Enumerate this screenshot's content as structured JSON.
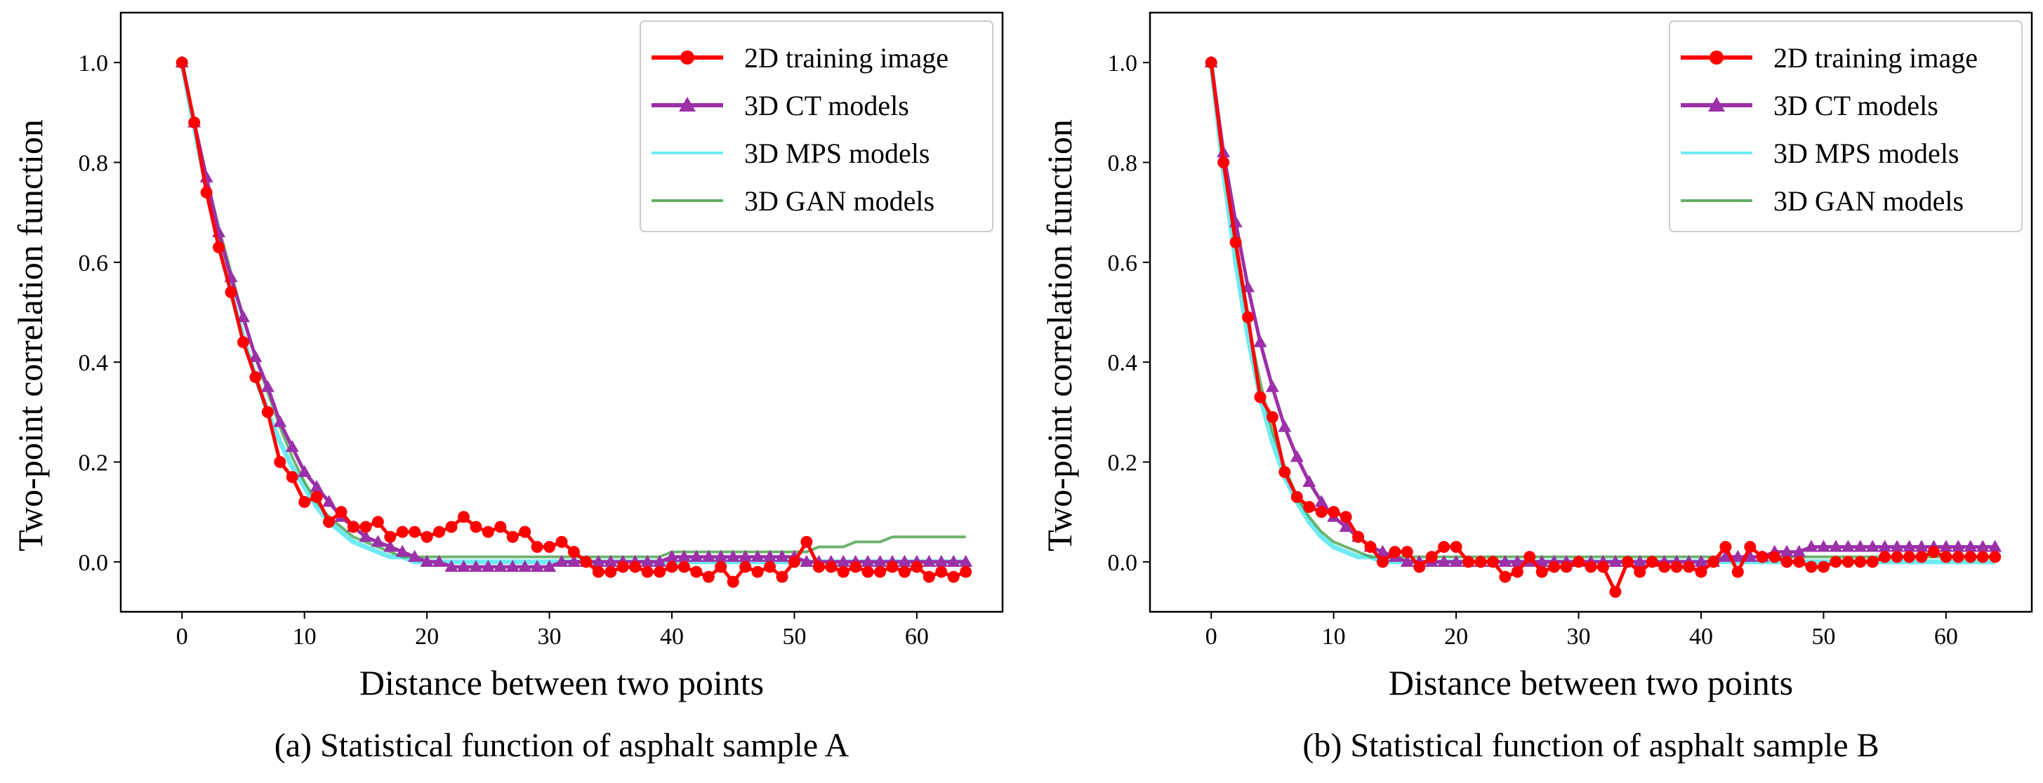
{
  "chart_data": [
    {
      "type": "line",
      "caption": "(a) Statistical function of asphalt sample A",
      "xlabel": "Distance between two points",
      "ylabel": "Two-point correlation function",
      "xlim": [
        -5,
        67
      ],
      "ylim": [
        -0.1,
        1.1
      ],
      "xticks": [
        "0",
        "10",
        "20",
        "30",
        "40",
        "50",
        "60"
      ],
      "yticks": [
        "0.0",
        "0.2",
        "0.4",
        "0.6",
        "0.8",
        "1.0"
      ],
      "legend_position": "top-right",
      "series": [
        {
          "name": "2D training image",
          "color": "#ff0000",
          "marker": "circle",
          "values": [
            1.0,
            0.88,
            0.74,
            0.63,
            0.54,
            0.44,
            0.37,
            0.3,
            0.2,
            0.17,
            0.12,
            0.13,
            0.08,
            0.1,
            0.07,
            0.07,
            0.08,
            0.05,
            0.06,
            0.06,
            0.05,
            0.06,
            0.07,
            0.09,
            0.07,
            0.06,
            0.07,
            0.05,
            0.06,
            0.03,
            0.03,
            0.04,
            0.02,
            0.0,
            -0.02,
            -0.02,
            -0.01,
            -0.01,
            -0.02,
            -0.02,
            -0.01,
            -0.01,
            -0.02,
            -0.03,
            -0.01,
            -0.04,
            -0.01,
            -0.02,
            -0.01,
            -0.03,
            0.0,
            0.04,
            -0.01,
            -0.01,
            -0.02,
            -0.01,
            -0.02,
            -0.02,
            -0.01,
            -0.02,
            -0.01,
            -0.03,
            -0.02,
            -0.03,
            -0.02
          ]
        },
        {
          "name": "3D CT models",
          "color": "#9b30a8",
          "marker": "triangle",
          "values": [
            1.0,
            0.88,
            0.77,
            0.66,
            0.57,
            0.49,
            0.41,
            0.35,
            0.28,
            0.23,
            0.18,
            0.15,
            0.12,
            0.09,
            0.07,
            0.05,
            0.04,
            0.03,
            0.02,
            0.01,
            0.0,
            0.0,
            -0.01,
            -0.01,
            -0.01,
            -0.01,
            -0.01,
            -0.01,
            -0.01,
            -0.01,
            -0.01,
            0.0,
            0.0,
            0.0,
            0.0,
            0.0,
            0.0,
            0.0,
            0.0,
            0.0,
            0.01,
            0.01,
            0.01,
            0.01,
            0.01,
            0.01,
            0.01,
            0.01,
            0.01,
            0.01,
            0.01,
            0.0,
            0.0,
            0.0,
            0.0,
            0.0,
            0.0,
            0.0,
            0.0,
            0.0,
            0.0,
            0.0,
            0.0,
            0.0,
            0.0
          ]
        },
        {
          "name": "3D MPS models",
          "color": "#55e8f0",
          "marker": "none",
          "values": [
            1.0,
            0.87,
            0.75,
            0.64,
            0.54,
            0.45,
            0.37,
            0.3,
            0.24,
            0.19,
            0.15,
            0.11,
            0.08,
            0.06,
            0.04,
            0.03,
            0.02,
            0.01,
            0.01,
            0.0,
            0.0,
            0.0,
            0.0,
            0.0,
            0.0,
            0.0,
            0.0,
            0.0,
            0.0,
            0.0,
            0.0,
            0.0,
            0.0,
            0.0,
            0.0,
            0.0,
            0.0,
            0.0,
            0.0,
            0.0,
            0.0,
            0.0,
            0.0,
            0.0,
            0.0,
            0.0,
            0.0,
            0.0,
            0.0,
            0.0,
            0.0,
            0.0,
            0.0,
            0.0,
            0.0,
            0.0,
            0.0,
            0.0,
            0.0,
            0.0,
            0.0,
            0.0,
            0.0,
            0.0,
            0.0
          ]
        },
        {
          "name": "3D GAN models",
          "color": "#3e9a3e",
          "marker": "none",
          "values": [
            1.0,
            0.88,
            0.77,
            0.67,
            0.58,
            0.49,
            0.41,
            0.34,
            0.27,
            0.21,
            0.16,
            0.12,
            0.09,
            0.07,
            0.05,
            0.04,
            0.03,
            0.02,
            0.01,
            0.01,
            0.01,
            0.01,
            0.01,
            0.01,
            0.01,
            0.01,
            0.01,
            0.01,
            0.01,
            0.01,
            0.01,
            0.01,
            0.01,
            0.01,
            0.01,
            0.01,
            0.01,
            0.01,
            0.01,
            0.01,
            0.02,
            0.02,
            0.02,
            0.02,
            0.02,
            0.02,
            0.02,
            0.02,
            0.02,
            0.02,
            0.02,
            0.02,
            0.03,
            0.03,
            0.03,
            0.04,
            0.04,
            0.04,
            0.05,
            0.05,
            0.05,
            0.05,
            0.05,
            0.05,
            0.05
          ]
        }
      ]
    },
    {
      "type": "line",
      "caption": "(b) Statistical function of asphalt sample B",
      "xlabel": "Distance between two points",
      "ylabel": "Two-point correlation function",
      "xlim": [
        -5,
        67
      ],
      "ylim": [
        -0.1,
        1.1
      ],
      "xticks": [
        "0",
        "10",
        "20",
        "30",
        "40",
        "50",
        "60"
      ],
      "yticks": [
        "0.0",
        "0.2",
        "0.4",
        "0.6",
        "0.8",
        "1.0"
      ],
      "legend_position": "top-right",
      "series": [
        {
          "name": "2D training image",
          "color": "#ff0000",
          "marker": "circle",
          "values": [
            1.0,
            0.8,
            0.64,
            0.49,
            0.33,
            0.29,
            0.18,
            0.13,
            0.11,
            0.1,
            0.1,
            0.09,
            0.05,
            0.03,
            0.0,
            0.02,
            0.02,
            -0.01,
            0.01,
            0.03,
            0.03,
            0.0,
            0.0,
            0.0,
            -0.03,
            -0.02,
            0.01,
            -0.02,
            -0.01,
            -0.01,
            0.0,
            -0.01,
            -0.01,
            -0.06,
            0.0,
            -0.02,
            0.0,
            -0.01,
            -0.01,
            -0.01,
            -0.02,
            0.0,
            0.03,
            -0.02,
            0.03,
            0.01,
            0.01,
            0.0,
            0.0,
            -0.01,
            -0.01,
            0.0,
            0.0,
            0.0,
            0.0,
            0.01,
            0.01,
            0.01,
            0.01,
            0.02,
            0.01,
            0.01,
            0.01,
            0.01,
            0.01
          ]
        },
        {
          "name": "3D CT models",
          "color": "#9b30a8",
          "marker": "triangle",
          "values": [
            1.0,
            0.82,
            0.68,
            0.55,
            0.44,
            0.35,
            0.27,
            0.21,
            0.16,
            0.12,
            0.09,
            0.07,
            0.05,
            0.03,
            0.02,
            0.01,
            0.0,
            0.0,
            0.0,
            0.0,
            0.0,
            0.0,
            0.0,
            0.0,
            0.0,
            0.0,
            0.0,
            0.0,
            0.0,
            0.0,
            0.0,
            0.0,
            0.0,
            0.0,
            0.0,
            0.0,
            0.0,
            0.0,
            0.0,
            0.0,
            0.0,
            0.0,
            0.01,
            0.01,
            0.01,
            0.01,
            0.02,
            0.02,
            0.02,
            0.03,
            0.03,
            0.03,
            0.03,
            0.03,
            0.03,
            0.03,
            0.03,
            0.03,
            0.03,
            0.03,
            0.03,
            0.03,
            0.03,
            0.03,
            0.03
          ]
        },
        {
          "name": "3D MPS models",
          "color": "#55e8f0",
          "marker": "none",
          "values": [
            1.0,
            0.78,
            0.6,
            0.45,
            0.33,
            0.24,
            0.17,
            0.12,
            0.08,
            0.05,
            0.03,
            0.02,
            0.01,
            0.01,
            0.0,
            0.0,
            0.0,
            0.0,
            0.0,
            0.0,
            0.0,
            0.0,
            0.0,
            0.0,
            0.0,
            0.0,
            0.0,
            0.0,
            0.0,
            0.0,
            0.0,
            0.0,
            0.0,
            0.0,
            0.0,
            0.0,
            0.0,
            0.0,
            0.0,
            0.0,
            0.0,
            0.0,
            0.0,
            0.0,
            0.0,
            0.0,
            0.0,
            0.0,
            0.0,
            0.0,
            0.0,
            0.0,
            0.0,
            0.0,
            0.0,
            0.0,
            0.0,
            0.0,
            0.0,
            0.0,
            0.0,
            0.0,
            0.0,
            0.0,
            0.0
          ]
        },
        {
          "name": "3D GAN models",
          "color": "#3e9a3e",
          "marker": "none",
          "values": [
            1.0,
            0.8,
            0.63,
            0.48,
            0.36,
            0.26,
            0.19,
            0.13,
            0.09,
            0.06,
            0.04,
            0.03,
            0.02,
            0.01,
            0.01,
            0.01,
            0.01,
            0.01,
            0.01,
            0.01,
            0.01,
            0.01,
            0.01,
            0.01,
            0.01,
            0.01,
            0.01,
            0.01,
            0.01,
            0.01,
            0.01,
            0.01,
            0.01,
            0.01,
            0.01,
            0.01,
            0.01,
            0.01,
            0.01,
            0.01,
            0.01,
            0.01,
            0.01,
            0.01,
            0.01,
            0.01,
            0.01,
            0.01,
            0.01,
            0.01,
            0.01,
            0.01,
            0.01,
            0.01,
            0.01,
            0.01,
            0.01,
            0.01,
            0.01,
            0.01,
            0.01,
            0.01,
            0.01,
            0.01,
            0.01
          ]
        }
      ]
    }
  ]
}
